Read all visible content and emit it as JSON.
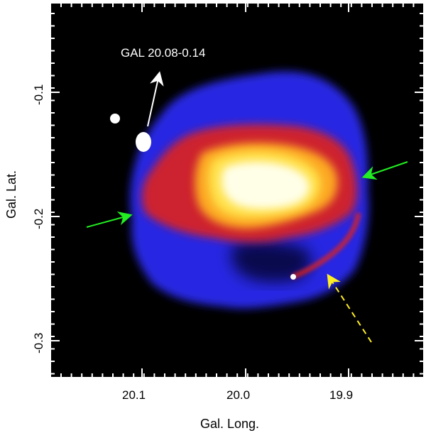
{
  "figure": {
    "x_axis_label": "Gal. Long.",
    "y_axis_label": "Gal. Lat.",
    "x_ticks": [
      "20.1",
      "20.0",
      "19.9"
    ],
    "y_ticks": [
      "-0.1",
      "-0.2",
      "-0.3"
    ],
    "source_label": "GAL 20.08-0.14",
    "colors": {
      "background": "#000000",
      "emission_blue": "#2a2cf0",
      "emission_red": "#e0201a",
      "emission_yellow": "#ffe14a",
      "emission_white": "#ffffe8",
      "arrow_white": "#ffffff",
      "arrow_green": "#22ee22",
      "arrow_yellow": "#ffee22"
    },
    "icons": [
      "white-arrow-icon",
      "green-arrow-icon",
      "yellow-dashed-arrow-icon"
    ]
  }
}
